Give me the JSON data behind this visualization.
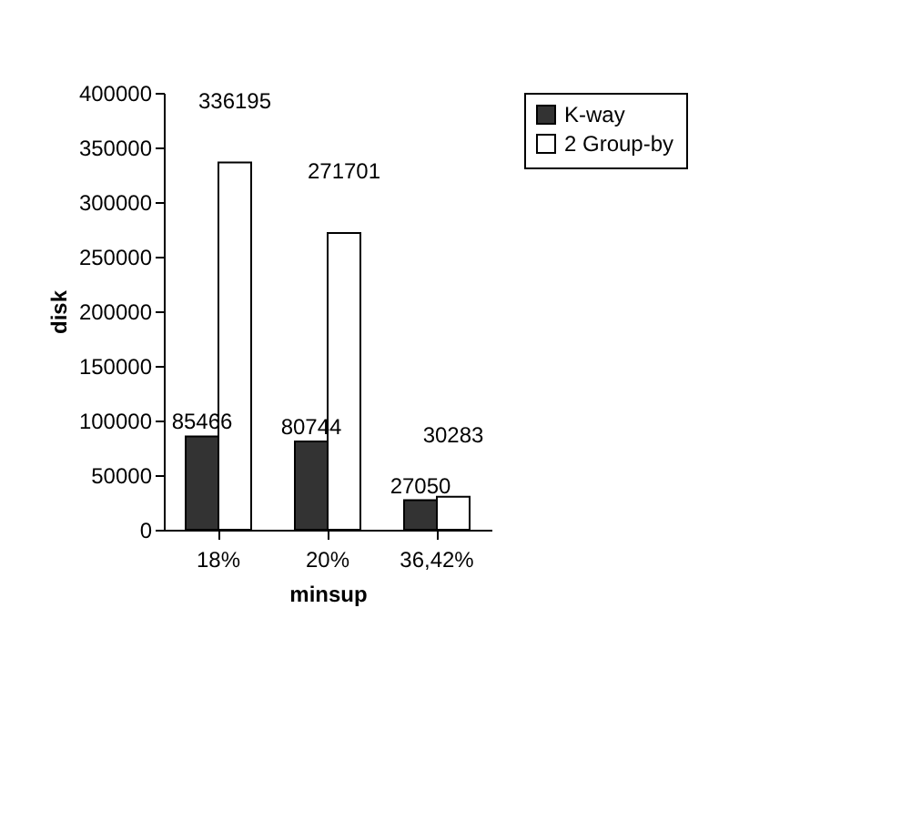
{
  "chart_data": {
    "type": "bar",
    "xlabel": "minsup",
    "ylabel": "disk",
    "categories": [
      "18%",
      "20%",
      "36,42%"
    ],
    "series": [
      {
        "name": "K-way",
        "color": "#333333",
        "values": [
          85466,
          80744,
          27050
        ]
      },
      {
        "name": "2 Group-by",
        "color": "#ffffff",
        "values": [
          336195,
          271701,
          30283
        ]
      }
    ],
    "ylim": [
      0,
      400000
    ],
    "yticks": [
      0,
      50000,
      100000,
      150000,
      200000,
      250000,
      300000,
      350000,
      400000
    ],
    "data_labels": true,
    "legend": "right",
    "grid": false
  }
}
